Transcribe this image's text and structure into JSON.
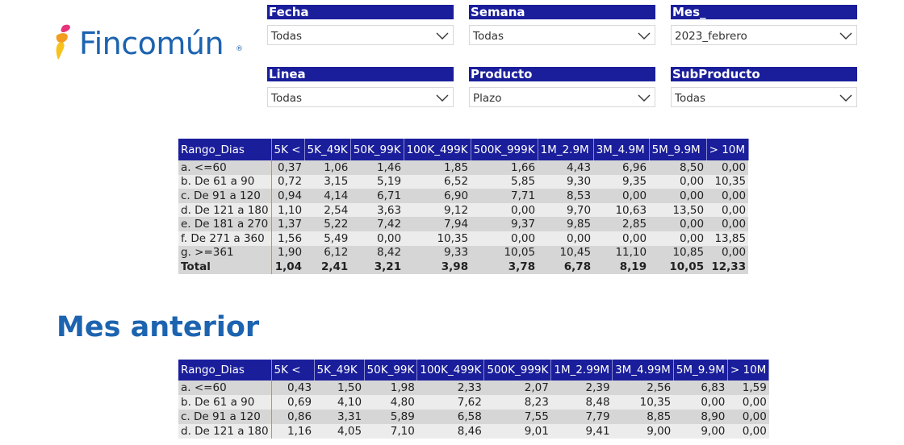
{
  "logo": {
    "text": "Fincomún",
    "reg": "®"
  },
  "slicers": [
    {
      "title": "Fecha",
      "value": "Todas"
    },
    {
      "title": "Semana",
      "value": "Todas"
    },
    {
      "title": "Mes_",
      "value": "2023_febrero"
    },
    {
      "title": "Linea",
      "value": "Todas"
    },
    {
      "title": "Producto",
      "value": "Plazo"
    },
    {
      "title": "SubProducto",
      "value": "Todas"
    }
  ],
  "current_table": {
    "headers": [
      "Rango_Dias",
      "5K <",
      "5K_49K",
      "50K_99K",
      "100K_499K",
      "500K_999K",
      "1M_2.9M",
      "3M_4.9M",
      "5M_9.9M",
      "> 10M"
    ],
    "rows": [
      [
        "a. <=60",
        "0,37",
        "1,06",
        "1,46",
        "1,85",
        "1,66",
        "4,43",
        "6,96",
        "8,50",
        "0,00"
      ],
      [
        "b. De 61 a 90",
        "0,72",
        "3,15",
        "5,19",
        "6,52",
        "5,85",
        "9,30",
        "9,35",
        "0,00",
        "10,35"
      ],
      [
        "c. De 91 a 120",
        "0,94",
        "4,14",
        "6,71",
        "6,90",
        "7,71",
        "8,53",
        "0,00",
        "0,00",
        "0,00"
      ],
      [
        "d. De 121 a 180",
        "1,10",
        "2,54",
        "3,63",
        "9,12",
        "0,00",
        "9,70",
        "10,63",
        "13,50",
        "0,00"
      ],
      [
        "e. De 181 a 270",
        "1,37",
        "5,22",
        "7,42",
        "7,94",
        "9,37",
        "9,85",
        "2,85",
        "0,00",
        "0,00"
      ],
      [
        "f. De 271 a 360",
        "1,56",
        "5,49",
        "0,00",
        "10,35",
        "0,00",
        "0,00",
        "0,00",
        "0,00",
        "13,85"
      ],
      [
        "g. >=361",
        "1,90",
        "6,12",
        "8,42",
        "9,33",
        "10,05",
        "10,45",
        "11,10",
        "10,85",
        "0,00"
      ]
    ],
    "total": [
      "Total",
      "1,04",
      "2,41",
      "3,21",
      "3,98",
      "3,78",
      "6,78",
      "8,19",
      "10,05",
      "12,33"
    ]
  },
  "previous_heading": "Mes anterior",
  "previous_table": {
    "headers": [
      "Rango_Dias",
      "5K <",
      "5K_49K",
      "50K_99K",
      "100K_499K",
      "500K_999K",
      "1M_2.99M",
      "3M_4.99M",
      "5M_9.9M",
      "> 10M"
    ],
    "rows": [
      [
        "a. <=60",
        "0,43",
        "1,50",
        "1,98",
        "2,33",
        "2,07",
        "2,39",
        "2,56",
        "6,83",
        "1,59"
      ],
      [
        "b. De 61 a 90",
        "0,69",
        "4,10",
        "4,80",
        "7,62",
        "8,23",
        "8,48",
        "10,35",
        "0,00",
        "0,00"
      ],
      [
        "c. De 91 a 120",
        "0,86",
        "3,31",
        "5,89",
        "6,58",
        "7,55",
        "7,79",
        "8,85",
        "8,90",
        "0,00"
      ],
      [
        "d. De 121 a 180",
        "1,16",
        "4,05",
        "7,10",
        "8,46",
        "9,01",
        "9,41",
        "9,00",
        "9,00",
        "0,00"
      ]
    ]
  }
}
